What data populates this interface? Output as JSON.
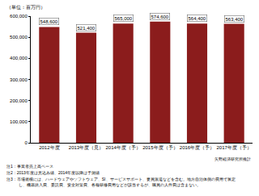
{
  "chart_data": {
    "type": "bar",
    "unit_label": "（単位：百万円）",
    "categories": [
      "2012年度",
      "2013年度（見）",
      "2014年度（予）",
      "2015年度（予）",
      "2016年度（予）",
      "2017年度（予）"
    ],
    "values": [
      548600,
      521400,
      565000,
      574600,
      564400,
      563400
    ],
    "value_labels": [
      "548,600",
      "521,400",
      "565,000",
      "574,600",
      "564,400",
      "563,400"
    ],
    "data_labels": true,
    "color": "#8b1c1c",
    "ylim": [
      0,
      600000
    ],
    "yticks": [
      0,
      {
        "value": 100000,
        "label": "100,000"
      },
      {
        "value": 200000,
        "label": "200,000"
      },
      {
        "value": 300000,
        "label": "300,000"
      },
      {
        "value": 400000,
        "label": "400,000"
      },
      {
        "value": 500000,
        "label": "500,000"
      },
      {
        "value": 600000,
        "label": "600,000"
      }
    ],
    "grid": false,
    "source": "矢野経済研究所推計",
    "notes": [
      "注1：事業者売上高ベース",
      "注2：2013年度は見込み値、2014年度以降は予測値",
      "注3：市場規模には、ハードウェアやソフトウェア、SI、サービスサポート、要員派遣などを含む。地方自治体側の費用で算定し、機器購入費、委託費、安全対策費、各種研修費用などが該当するが、職員の人件費は含まない。"
    ]
  }
}
